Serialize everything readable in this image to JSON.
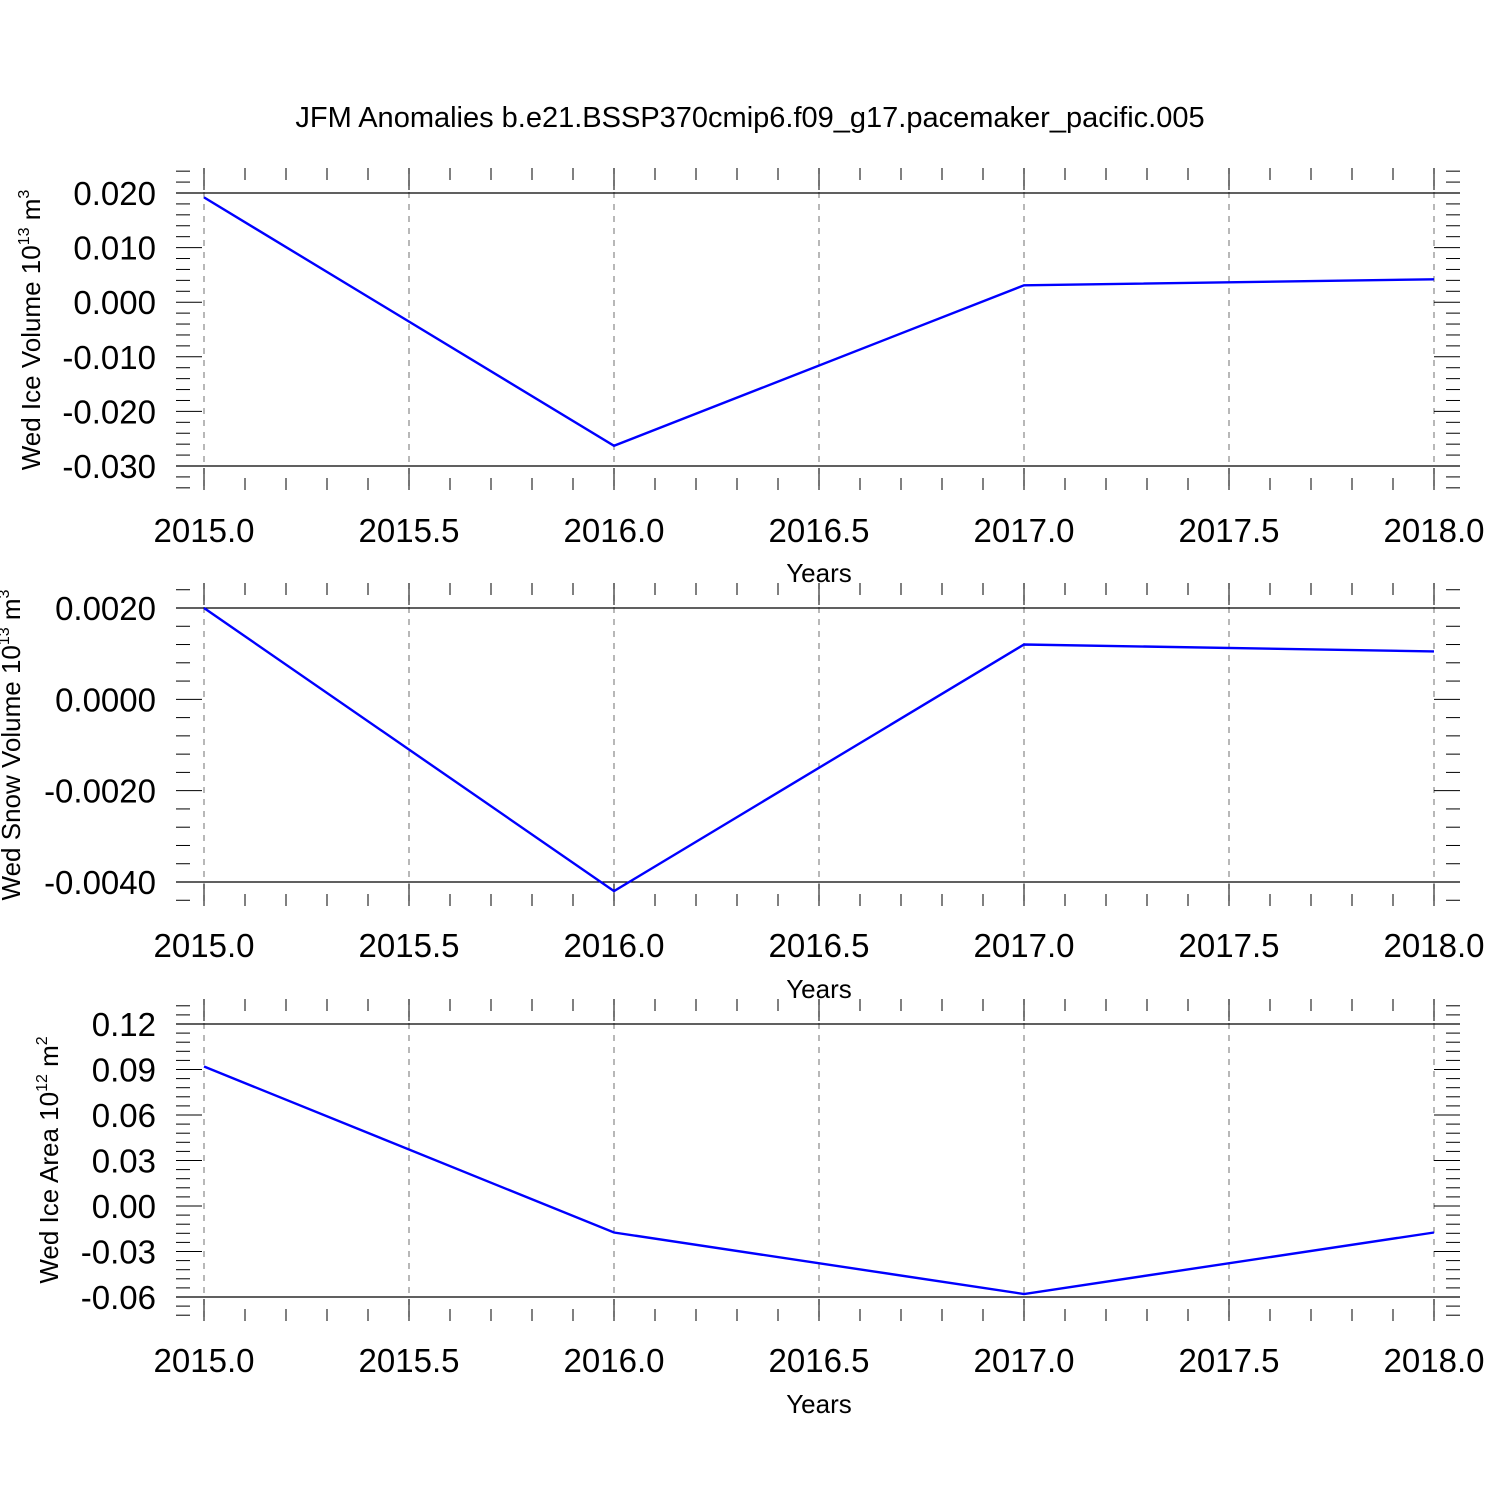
{
  "figure": {
    "title": "JFM Anomalies b.e21.BSSP370cmip6.f09_g17.pacemaker_pacific.005",
    "line_color": "#0000ff"
  },
  "chart_data": [
    {
      "type": "line",
      "xlabel": "Years",
      "ylabel": {
        "text": "Wed Ice Volume 10",
        "sup": "13",
        "unit": " m",
        "unit_sup": "3"
      },
      "xlim": [
        2015.0,
        2018.0
      ],
      "ylim": [
        -0.03,
        0.02
      ],
      "xticks": [
        "2015.0",
        "2015.5",
        "2016.0",
        "2016.5",
        "2017.0",
        "2017.5",
        "2018.0"
      ],
      "yticks": [
        "0.020",
        "0.010",
        "0.000",
        "-0.010",
        "-0.020",
        "-0.030"
      ],
      "x": [
        2015.0,
        2016.0,
        2017.0,
        2018.0
      ],
      "values": [
        0.0192,
        -0.0263,
        0.0031,
        0.0042
      ],
      "grid": "vertical dashed"
    },
    {
      "type": "line",
      "xlabel": "Years",
      "ylabel": {
        "text": "Wed Snow Volume 10",
        "sup": "13",
        "unit": " m",
        "unit_sup": "3"
      },
      "xlim": [
        2015.0,
        2018.0
      ],
      "ylim": [
        -0.005,
        0.002
      ],
      "xticks": [
        "2015.0",
        "2015.5",
        "2016.0",
        "2016.5",
        "2017.0",
        "2017.5",
        "2018.0"
      ],
      "yticks": [
        "0.0020",
        "0.0000",
        "-0.0020",
        "-0.0040"
      ],
      "x": [
        2015.0,
        2016.0,
        2017.0,
        2018.0
      ],
      "values": [
        0.002,
        -0.0042,
        0.0012,
        0.00105
      ],
      "grid": "vertical dashed"
    },
    {
      "type": "line",
      "xlabel": "Years",
      "ylabel": {
        "text": "Wed Ice Area 10",
        "sup": "12",
        "unit": " m",
        "unit_sup": "2"
      },
      "xlim": [
        2015.0,
        2018.0
      ],
      "ylim": [
        -0.06,
        0.12
      ],
      "xticks": [
        "2015.0",
        "2015.5",
        "2016.0",
        "2016.5",
        "2017.0",
        "2017.5",
        "2018.0"
      ],
      "yticks": [
        "0.12",
        "0.09",
        "0.06",
        "0.03",
        "0.00",
        "-0.03",
        "-0.06"
      ],
      "x": [
        2015.0,
        2016.0,
        2017.0,
        2018.0
      ],
      "values": [
        0.092,
        -0.0175,
        -0.058,
        -0.0175
      ],
      "grid": "vertical dashed"
    }
  ]
}
